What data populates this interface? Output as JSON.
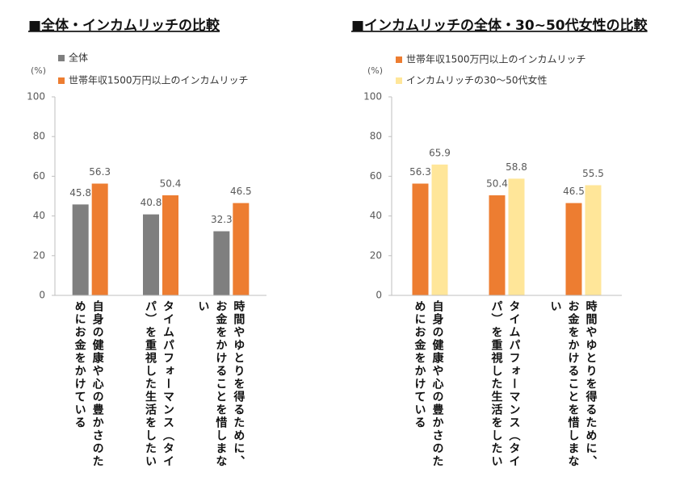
{
  "chart_data": [
    {
      "type": "bar",
      "title": "■全体・インカムリッチの比較",
      "y_label": "(%)",
      "categories": [
        "自身の健康や心の豊かさのためにお金をかけている",
        "タイムパフォーマンス（タイパ）を重視した生活をしたい",
        "時間やゆとりを得るために、お金をかけることを惜しまない"
      ],
      "series": [
        {
          "name": "全体",
          "color": "#7f7f7f",
          "values": [
            45.8,
            40.8,
            32.3
          ]
        },
        {
          "name": "世帯年収1500万円以上のインカムリッチ",
          "color": "#ed7d31",
          "values": [
            56.3,
            50.4,
            46.5
          ]
        }
      ],
      "ylim": [
        0,
        100
      ],
      "yticks": [
        0,
        20,
        40,
        60,
        80,
        100
      ]
    },
    {
      "type": "bar",
      "title": "■インカムリッチの全体・30~50代女性の比較",
      "y_label": "(%)",
      "categories": [
        "自身の健康や心の豊かさのためにお金をかけている",
        "タイムパフォーマンス（タイパ）を重視した生活をしたい",
        "時間やゆとりを得るために、お金をかけることを惜しまない"
      ],
      "series": [
        {
          "name": "世帯年収1500万円以上のインカムリッチ",
          "color": "#ed7d31",
          "values": [
            56.3,
            50.4,
            46.5
          ]
        },
        {
          "name": "インカムリッチの30～50代女性",
          "color": "#ffe699",
          "values": [
            65.9,
            58.8,
            55.5
          ]
        }
      ],
      "ylim": [
        0,
        100
      ],
      "yticks": [
        0,
        20,
        40,
        60,
        80,
        100
      ]
    }
  ]
}
